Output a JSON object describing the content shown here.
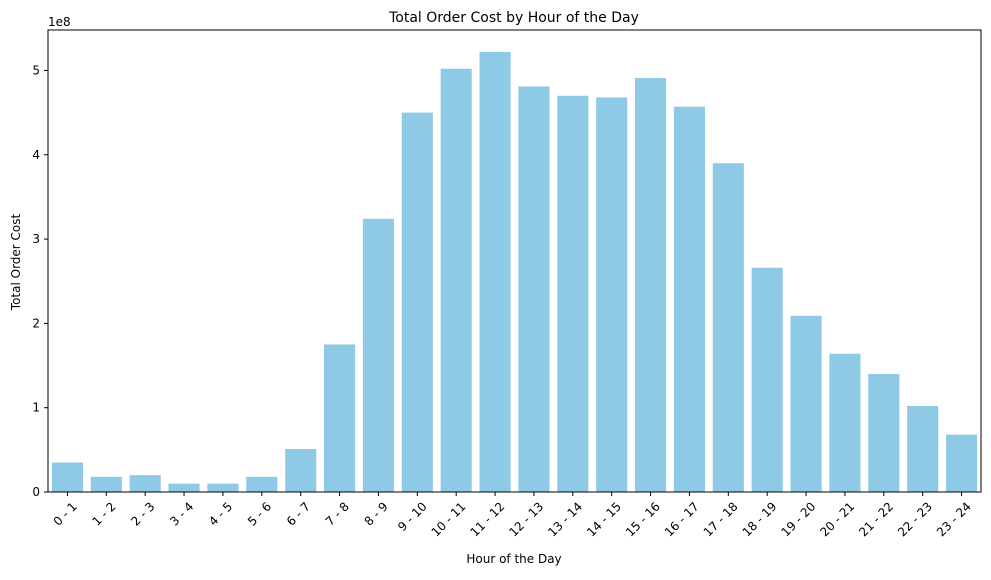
{
  "chart_data": {
    "type": "bar",
    "title": "Total Order Cost by Hour of the Day",
    "xlabel": "Hour of the Day",
    "ylabel": "Total Order Cost",
    "y_scale_label": "1e8",
    "ylim": [
      0,
      5.48
    ],
    "y_ticks": [
      0,
      1,
      2,
      3,
      4,
      5
    ],
    "y_tick_labels": [
      "0",
      "1",
      "2",
      "3",
      "4",
      "5"
    ],
    "bar_color": "#8ecae6",
    "grid": false,
    "categories": [
      "0 - 1",
      "1 - 2",
      "2 - 3",
      "3 - 4",
      "4 - 5",
      "5 - 6",
      "6 - 7",
      "7 - 8",
      "8 - 9",
      "9 - 10",
      "10 - 11",
      "11 - 12",
      "12 - 13",
      "13 - 14",
      "14 - 15",
      "15 - 16",
      "16 - 17",
      "17 - 18",
      "18 - 19",
      "19 - 20",
      "20 - 21",
      "21 - 22",
      "22 - 23",
      "23 - 24"
    ],
    "values": [
      0.35,
      0.18,
      0.2,
      0.1,
      0.1,
      0.18,
      0.51,
      1.75,
      3.24,
      4.5,
      5.02,
      5.22,
      4.81,
      4.7,
      4.68,
      4.91,
      4.57,
      3.9,
      2.66,
      2.09,
      1.64,
      1.4,
      1.02,
      0.68
    ]
  }
}
